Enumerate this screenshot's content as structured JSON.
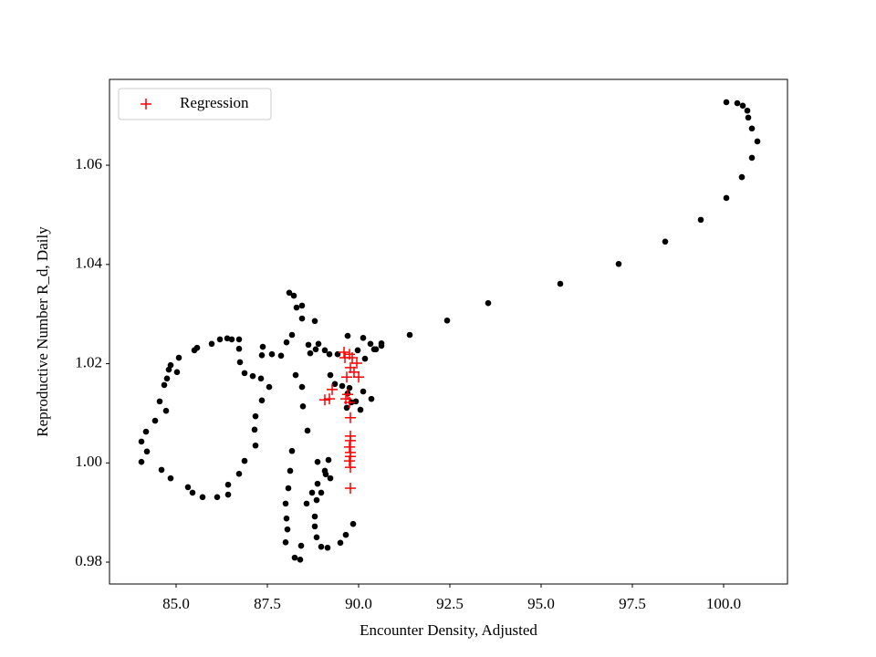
{
  "chart_data": {
    "type": "scatter",
    "xlabel": "Encounter Density, Adjusted",
    "ylabel": "Reproductive Number R_d, Daily",
    "xlim": [
      83.175,
      101.75
    ],
    "ylim": [
      0.97559,
      1.0773
    ],
    "xticks": [
      {
        "value": 85,
        "label": "85.0"
      },
      {
        "value": 87.5,
        "label": "87.5"
      },
      {
        "value": 90,
        "label": "90.0"
      },
      {
        "value": 92.5,
        "label": "92.5"
      },
      {
        "value": 95,
        "label": "95.0"
      },
      {
        "value": 97.5,
        "label": "97.5"
      },
      {
        "value": 100,
        "label": "100.0"
      }
    ],
    "yticks": [
      0.98,
      {
        "value": 1,
        "label": "1.00"
      },
      1.02,
      1.04,
      1.06
    ],
    "legend": "upper left",
    "series": [
      {
        "color": "#000000",
        "marker": "o",
        "x": [
          100.075,
          100.375,
          100.525,
          100.65,
          100.675,
          100.775,
          100.925,
          100.775,
          100.5,
          100.075,
          99.375,
          98.4,
          97.125,
          95.525,
          93.55,
          92.425,
          91.4,
          90.625,
          90.625,
          90.475,
          90.125,
          89.7,
          89.425,
          89.2,
          89.075,
          88.9,
          89.975,
          90.325,
          90.175,
          90.425,
          89.35,
          89.55,
          89.7,
          89.675,
          89.8,
          89.75,
          89.925,
          90.05,
          90.125,
          90.35,
          89.225,
          88.825,
          88.675,
          84.05,
          84.05,
          84.175,
          84.2,
          84.425,
          84.55,
          84.725,
          84.675,
          84.75,
          84.8,
          84.85,
          85.025,
          85.075,
          85.5,
          85.575,
          85.975,
          86.2,
          86.4,
          86.525,
          86.725,
          86.725,
          86.75,
          86.875,
          87.1,
          87.325,
          87.35,
          87.375,
          87.625,
          87.875,
          88.025,
          88.175,
          88.3,
          88.1,
          88.225,
          88.45,
          88.45,
          88.8,
          88.625,
          88.275,
          88.45,
          88.475,
          88.6,
          88.175,
          88.125,
          88.075,
          88.0,
          88.025,
          88.05,
          88.0,
          88.25,
          88.4,
          88.425,
          88.575,
          88.725,
          88.975,
          89.1,
          89.175,
          88.875,
          89.075,
          88.875,
          89.225,
          88.85,
          88.8,
          88.8,
          88.85,
          88.975,
          89.15,
          89.5,
          89.65,
          89.85,
          84.6,
          84.85,
          85.325,
          85.45,
          85.725,
          86.125,
          86.425,
          86.425,
          86.725,
          86.875,
          87.175,
          87.15,
          87.175,
          87.35,
          87.55
        ],
        "values": [
          1.0727,
          1.0725,
          1.072,
          1.071,
          1.0696,
          1.0674,
          1.0648,
          1.0615,
          1.0576,
          1.0534,
          1.049,
          1.0446,
          1.0401,
          1.0361,
          1.0322,
          1.0287,
          1.0258,
          1.0241,
          1.0236,
          1.0229,
          1.0252,
          1.0256,
          1.0219,
          1.0219,
          1.0227,
          1.024,
          1.0227,
          1.024,
          1.021,
          1.0229,
          1.0159,
          1.0155,
          1.014,
          1.0111,
          1.0122,
          1.0151,
          1.0124,
          1.0107,
          1.0144,
          1.0129,
          1.0177,
          1.0229,
          1.0221,
          1.0002,
          1.0043,
          1.0063,
          1.0023,
          1.0085,
          1.0124,
          1.0105,
          1.0157,
          1.017,
          1.0188,
          1.0197,
          1.0183,
          1.0212,
          1.0227,
          1.0232,
          1.024,
          1.0249,
          1.0251,
          1.0249,
          1.0249,
          1.023,
          1.0203,
          1.0181,
          1.0175,
          1.017,
          1.0217,
          1.0234,
          1.0219,
          1.0216,
          1.0243,
          1.0258,
          1.0313,
          1.0343,
          1.0337,
          1.0317,
          1.0291,
          1.0286,
          1.0238,
          1.0177,
          1.0153,
          1.0114,
          1.0065,
          1.0024,
          0.9984,
          0.9949,
          0.9918,
          0.9888,
          0.9866,
          0.984,
          0.9809,
          0.9805,
          0.9833,
          0.9918,
          0.994,
          0.994,
          0.9977,
          1.0006,
          1.0002,
          0.9984,
          0.9958,
          0.9969,
          0.9925,
          0.9892,
          0.9872,
          0.985,
          0.9831,
          0.9829,
          0.9839,
          0.9855,
          0.9877,
          0.9986,
          0.9969,
          0.9951,
          0.994,
          0.9931,
          0.9931,
          0.9936,
          0.9956,
          0.9978,
          1.0004,
          1.0035,
          1.0067,
          1.0094,
          1.0126,
          1.0153
        ]
      },
      {
        "name": "Regression",
        "color": "#ff0000",
        "marker": "+",
        "x": [
          89.625,
          89.75,
          89.6,
          89.825,
          89.775,
          89.875,
          90.0,
          89.275,
          89.075,
          89.2,
          89.65,
          89.7,
          89.75,
          89.775,
          89.775,
          89.775,
          89.75,
          89.775,
          89.775,
          89.75,
          89.775,
          89.775,
          89.675,
          89.95
        ],
        "values": [
          1.0212,
          1.0219,
          1.0223,
          1.0212,
          1.0192,
          1.0183,
          1.0173,
          1.0148,
          1.0127,
          1.0129,
          1.0129,
          1.0138,
          1.0122,
          1.0091,
          1.0054,
          1.0045,
          1.0032,
          1.0021,
          1.0013,
          1.0004,
          0.9991,
          0.9949,
          1.0173,
          1.0201
        ]
      }
    ]
  }
}
